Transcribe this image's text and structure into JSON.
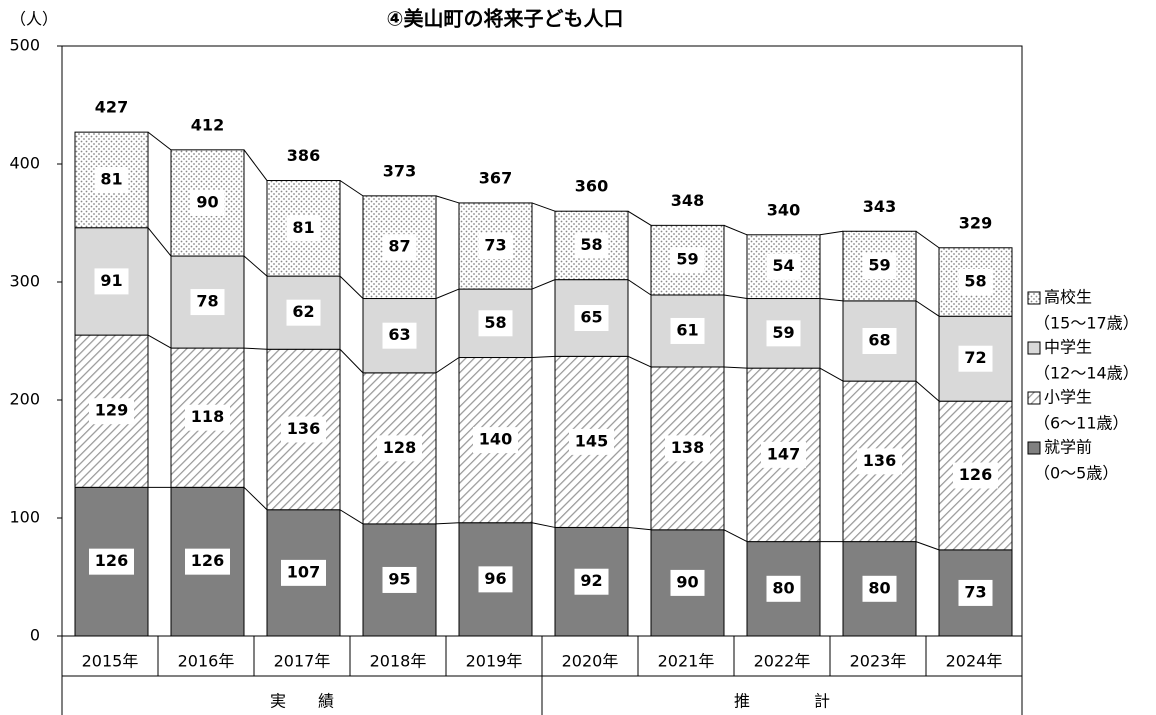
{
  "chart_data": {
    "type": "stacked-bar",
    "title": "④美山町の将来子ども人口",
    "y_label": "（人）",
    "categories": [
      "2015年",
      "2016年",
      "2017年",
      "2018年",
      "2019年",
      "2020年",
      "2021年",
      "2022年",
      "2023年",
      "2024年"
    ],
    "groups": [
      {
        "label": "実　　績",
        "size": 5
      },
      {
        "label": "推　　　　計",
        "size": 5
      }
    ],
    "series": [
      {
        "name": "就学前",
        "age": "（0～5歳）",
        "color": "#808080",
        "pattern": "solid",
        "values": [
          126,
          126,
          107,
          95,
          96,
          92,
          90,
          80,
          80,
          73
        ]
      },
      {
        "name": "小学生",
        "age": "（6～11歳）",
        "color": "#bfbfbf",
        "pattern": "hatch",
        "values": [
          129,
          118,
          136,
          128,
          140,
          145,
          138,
          147,
          136,
          126
        ]
      },
      {
        "name": "中学生",
        "age": "（12～14歳）",
        "color": "#d9d9d9",
        "pattern": "solid",
        "values": [
          91,
          78,
          62,
          63,
          58,
          65,
          61,
          59,
          68,
          72
        ]
      },
      {
        "name": "高校生",
        "age": "（15～17歳）",
        "color": "#a6a6a6",
        "pattern": "dots",
        "values": [
          81,
          90,
          81,
          87,
          73,
          58,
          59,
          54,
          59,
          58
        ]
      }
    ],
    "totals": [
      427,
      412,
      386,
      373,
      367,
      360,
      348,
      340,
      343,
      329
    ],
    "ylim": [
      0,
      500
    ],
    "yticks": [
      0,
      100,
      200,
      300,
      400,
      500
    ],
    "legend": "right"
  }
}
